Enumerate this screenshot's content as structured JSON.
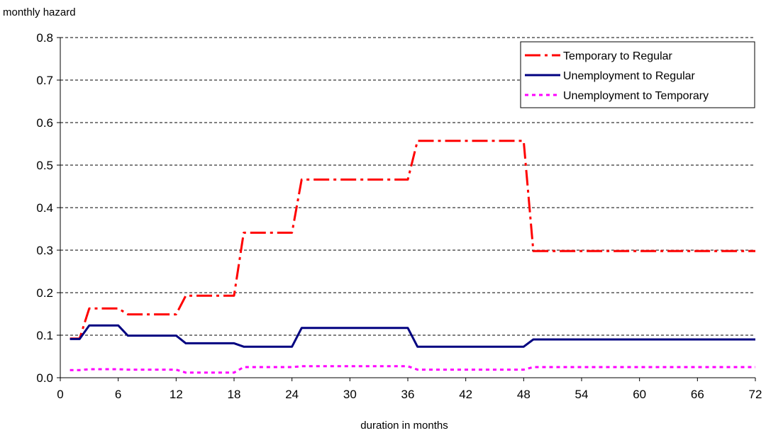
{
  "chart_data": {
    "type": "line",
    "ylabel": "monthly hazard",
    "xlabel": "duration in months",
    "xlim": [
      0,
      72
    ],
    "ylim": [
      0,
      0.8
    ],
    "x_ticks": [
      0,
      6,
      12,
      18,
      24,
      30,
      36,
      42,
      48,
      54,
      60,
      66,
      72
    ],
    "y_ticks": [
      0.0,
      0.1,
      0.2,
      0.3,
      0.4,
      0.5,
      0.6,
      0.7,
      0.8
    ],
    "y_tick_labels": [
      "0.0",
      "0.1",
      "0.2",
      "0.3",
      "0.4",
      "0.5",
      "0.6",
      "0.7",
      "0.8"
    ],
    "grid": "horizontal dashed",
    "legend_position": "top-right",
    "series": [
      {
        "name": "Temporary to Regular",
        "color": "#ff0000",
        "style": "dash-dot",
        "x": [
          1,
          2,
          3,
          4,
          5,
          6,
          7,
          8,
          9,
          10,
          11,
          12,
          13,
          14,
          15,
          16,
          17,
          18,
          19,
          20,
          21,
          22,
          23,
          24,
          25,
          26,
          27,
          28,
          29,
          30,
          31,
          32,
          33,
          34,
          35,
          36,
          37,
          38,
          39,
          40,
          41,
          42,
          43,
          44,
          45,
          46,
          47,
          48,
          49,
          50,
          51,
          52,
          53,
          54,
          55,
          56,
          57,
          58,
          59,
          60,
          61,
          62,
          63,
          64,
          65,
          66,
          67,
          68,
          69,
          70,
          71,
          72
        ],
        "values": [
          0.092,
          0.092,
          0.163,
          0.163,
          0.163,
          0.163,
          0.149,
          0.149,
          0.149,
          0.149,
          0.149,
          0.149,
          0.193,
          0.193,
          0.193,
          0.193,
          0.193,
          0.193,
          0.341,
          0.341,
          0.341,
          0.341,
          0.341,
          0.341,
          0.466,
          0.466,
          0.466,
          0.466,
          0.466,
          0.466,
          0.466,
          0.466,
          0.466,
          0.466,
          0.466,
          0.466,
          0.557,
          0.557,
          0.557,
          0.557,
          0.557,
          0.557,
          0.557,
          0.557,
          0.557,
          0.557,
          0.557,
          0.557,
          0.298,
          0.298,
          0.298,
          0.298,
          0.298,
          0.298,
          0.298,
          0.298,
          0.298,
          0.298,
          0.298,
          0.298,
          0.298,
          0.298,
          0.298,
          0.298,
          0.298,
          0.298,
          0.298,
          0.298,
          0.298,
          0.298,
          0.298,
          0.298
        ]
      },
      {
        "name": "Unemployment to Regular",
        "color": "#000080",
        "style": "solid",
        "x": [
          1,
          2,
          3,
          4,
          5,
          6,
          7,
          8,
          9,
          10,
          11,
          12,
          13,
          14,
          15,
          16,
          17,
          18,
          19,
          20,
          21,
          22,
          23,
          24,
          25,
          26,
          27,
          28,
          29,
          30,
          31,
          32,
          33,
          34,
          35,
          36,
          37,
          38,
          39,
          40,
          41,
          42,
          43,
          44,
          45,
          46,
          47,
          48,
          49,
          50,
          51,
          52,
          53,
          54,
          55,
          56,
          57,
          58,
          59,
          60,
          61,
          62,
          63,
          64,
          65,
          66,
          67,
          68,
          69,
          70,
          71,
          72
        ],
        "values": [
          0.091,
          0.091,
          0.123,
          0.123,
          0.123,
          0.123,
          0.099,
          0.099,
          0.099,
          0.099,
          0.099,
          0.099,
          0.081,
          0.081,
          0.081,
          0.081,
          0.081,
          0.081,
          0.073,
          0.073,
          0.073,
          0.073,
          0.073,
          0.073,
          0.117,
          0.117,
          0.117,
          0.117,
          0.117,
          0.117,
          0.117,
          0.117,
          0.117,
          0.117,
          0.117,
          0.117,
          0.073,
          0.073,
          0.073,
          0.073,
          0.073,
          0.073,
          0.073,
          0.073,
          0.073,
          0.073,
          0.073,
          0.073,
          0.09,
          0.09,
          0.09,
          0.09,
          0.09,
          0.09,
          0.09,
          0.09,
          0.09,
          0.09,
          0.09,
          0.09,
          0.09,
          0.09,
          0.09,
          0.09,
          0.09,
          0.09,
          0.09,
          0.09,
          0.09,
          0.09,
          0.09,
          0.09
        ]
      },
      {
        "name": "Unemployment to Temporary",
        "color": "#ff00ff",
        "style": "dotted",
        "x": [
          1,
          2,
          3,
          4,
          5,
          6,
          7,
          8,
          9,
          10,
          11,
          12,
          13,
          14,
          15,
          16,
          17,
          18,
          19,
          20,
          21,
          22,
          23,
          24,
          25,
          26,
          27,
          28,
          29,
          30,
          31,
          32,
          33,
          34,
          35,
          36,
          37,
          38,
          39,
          40,
          41,
          42,
          43,
          44,
          45,
          46,
          47,
          48,
          49,
          50,
          51,
          52,
          53,
          54,
          55,
          56,
          57,
          58,
          59,
          60,
          61,
          62,
          63,
          64,
          65,
          66,
          67,
          68,
          69,
          70,
          71,
          72
        ],
        "values": [
          0.018,
          0.018,
          0.02,
          0.02,
          0.02,
          0.02,
          0.019,
          0.019,
          0.019,
          0.019,
          0.019,
          0.019,
          0.012,
          0.012,
          0.012,
          0.012,
          0.012,
          0.012,
          0.025,
          0.025,
          0.025,
          0.025,
          0.025,
          0.025,
          0.027,
          0.027,
          0.027,
          0.027,
          0.027,
          0.027,
          0.027,
          0.027,
          0.027,
          0.027,
          0.027,
          0.027,
          0.019,
          0.019,
          0.019,
          0.019,
          0.019,
          0.019,
          0.019,
          0.019,
          0.019,
          0.019,
          0.019,
          0.019,
          0.025,
          0.025,
          0.025,
          0.025,
          0.025,
          0.025,
          0.025,
          0.025,
          0.025,
          0.025,
          0.025,
          0.025,
          0.025,
          0.025,
          0.025,
          0.025,
          0.025,
          0.025,
          0.025,
          0.025,
          0.025,
          0.025,
          0.025,
          0.025
        ]
      }
    ]
  }
}
